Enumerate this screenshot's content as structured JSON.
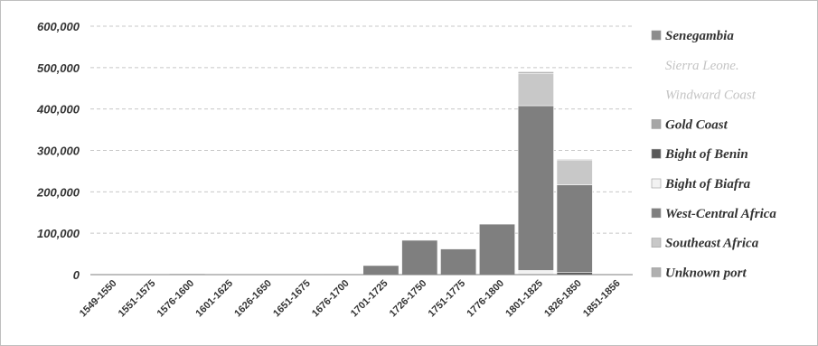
{
  "chart_data": {
    "type": "bar",
    "stacked": true,
    "categories": [
      "1549-1550",
      "1551-1575",
      "1576-1600",
      "1601-1625",
      "1626-1650",
      "1651-1675",
      "1676-1700",
      "1701-1725",
      "1726-1750",
      "1751-1775",
      "1776-1800",
      "1801-1825",
      "1826-1850",
      "1851-1856"
    ],
    "series": [
      {
        "name": "Senegambia",
        "color": "#8c8c8c",
        "values": [
          0,
          0,
          0,
          0,
          0,
          0,
          0,
          0,
          0,
          0,
          0,
          0,
          0,
          0
        ]
      },
      {
        "name": "Sierra Leone",
        "color": "#d9d9d9",
        "values": [
          0,
          0,
          0,
          0,
          0,
          0,
          0,
          0,
          0,
          0,
          0,
          0,
          0,
          0
        ]
      },
      {
        "name": "Windward Coast",
        "color": "#e6e6e6",
        "values": [
          0,
          0,
          0,
          0,
          0,
          0,
          0,
          0,
          0,
          0,
          0,
          0,
          0,
          0
        ]
      },
      {
        "name": "Gold Coast",
        "color": "#a6a6a6",
        "values": [
          0,
          0,
          0,
          0,
          0,
          0,
          0,
          0,
          0,
          0,
          0,
          0,
          0,
          0
        ]
      },
      {
        "name": "Bight of Benin",
        "color": "#595959",
        "values": [
          0,
          0,
          0,
          0,
          0,
          0,
          0,
          0,
          0,
          0,
          0,
          0,
          5000,
          0
        ]
      },
      {
        "name": "Bight of Biafra",
        "color": "#f2f2f2",
        "values": [
          0,
          0,
          0,
          0,
          0,
          0,
          0,
          0,
          0,
          0,
          0,
          10000,
          0,
          0
        ]
      },
      {
        "name": "West-Central Africa",
        "color": "#7f7f7f",
        "values": [
          0,
          0,
          2000,
          0,
          0,
          1000,
          1500,
          22000,
          83000,
          62000,
          122000,
          398000,
          212000,
          1500
        ]
      },
      {
        "name": "Southeast Africa",
        "color": "#c8c8c8",
        "values": [
          0,
          0,
          0,
          0,
          0,
          0,
          0,
          0,
          0,
          0,
          0,
          78000,
          60000,
          0
        ]
      },
      {
        "name": "Unknown port",
        "color": "#b0b0b0",
        "values": [
          0,
          0,
          0,
          0,
          0,
          0,
          0,
          0,
          0,
          0,
          0,
          4000,
          2000,
          0
        ]
      }
    ],
    "ylim": [
      0,
      600000
    ],
    "yticks": [
      "0",
      "100,000",
      "200,000",
      "300,000",
      "400,000",
      "500,000",
      "600,000"
    ],
    "grid": true,
    "legend_position": "right",
    "legend_faint": [
      "Sierra Leone",
      "Windward Coast"
    ],
    "legend_labels": [
      "Senegambia",
      "Sierra Leone",
      "Windward Coast",
      "Gold Coast",
      "Bight of Benin",
      "Bight of Biafra",
      "West-Central Africa",
      "Southeast Africa",
      "Unknown port"
    ]
  }
}
